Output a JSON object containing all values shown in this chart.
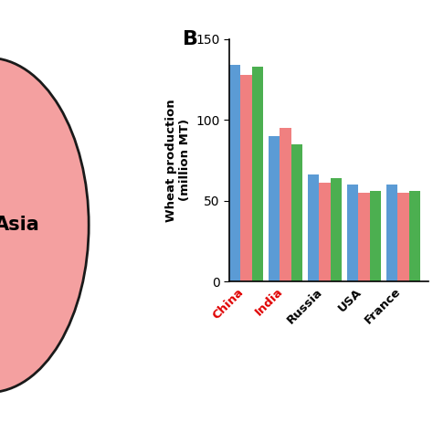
{
  "panel_b_label": "B",
  "categories": [
    "China",
    "India",
    "Russia",
    "USA",
    "France"
  ],
  "cat_colors": [
    "#e00000",
    "#e00000",
    "#000000",
    "#000000",
    "#000000"
  ],
  "bar_data": [
    [
      134,
      128,
      133
    ],
    [
      90,
      95,
      85
    ],
    [
      66,
      61,
      64
    ],
    [
      60,
      55,
      56
    ],
    [
      60,
      55,
      56
    ]
  ],
  "ylim": [
    0,
    150
  ],
  "yticks": [
    0,
    50,
    100,
    150
  ],
  "ylabel": "Wheat production\n(million MT)",
  "bar_colors": [
    "#5B9BD5",
    "#F08080",
    "#4CAF50"
  ],
  "asia_circle_color": "#F4A0A0",
  "asia_circle_edge": "#1a1a1a",
  "asia_label": "Asia",
  "background_color": "#ffffff"
}
